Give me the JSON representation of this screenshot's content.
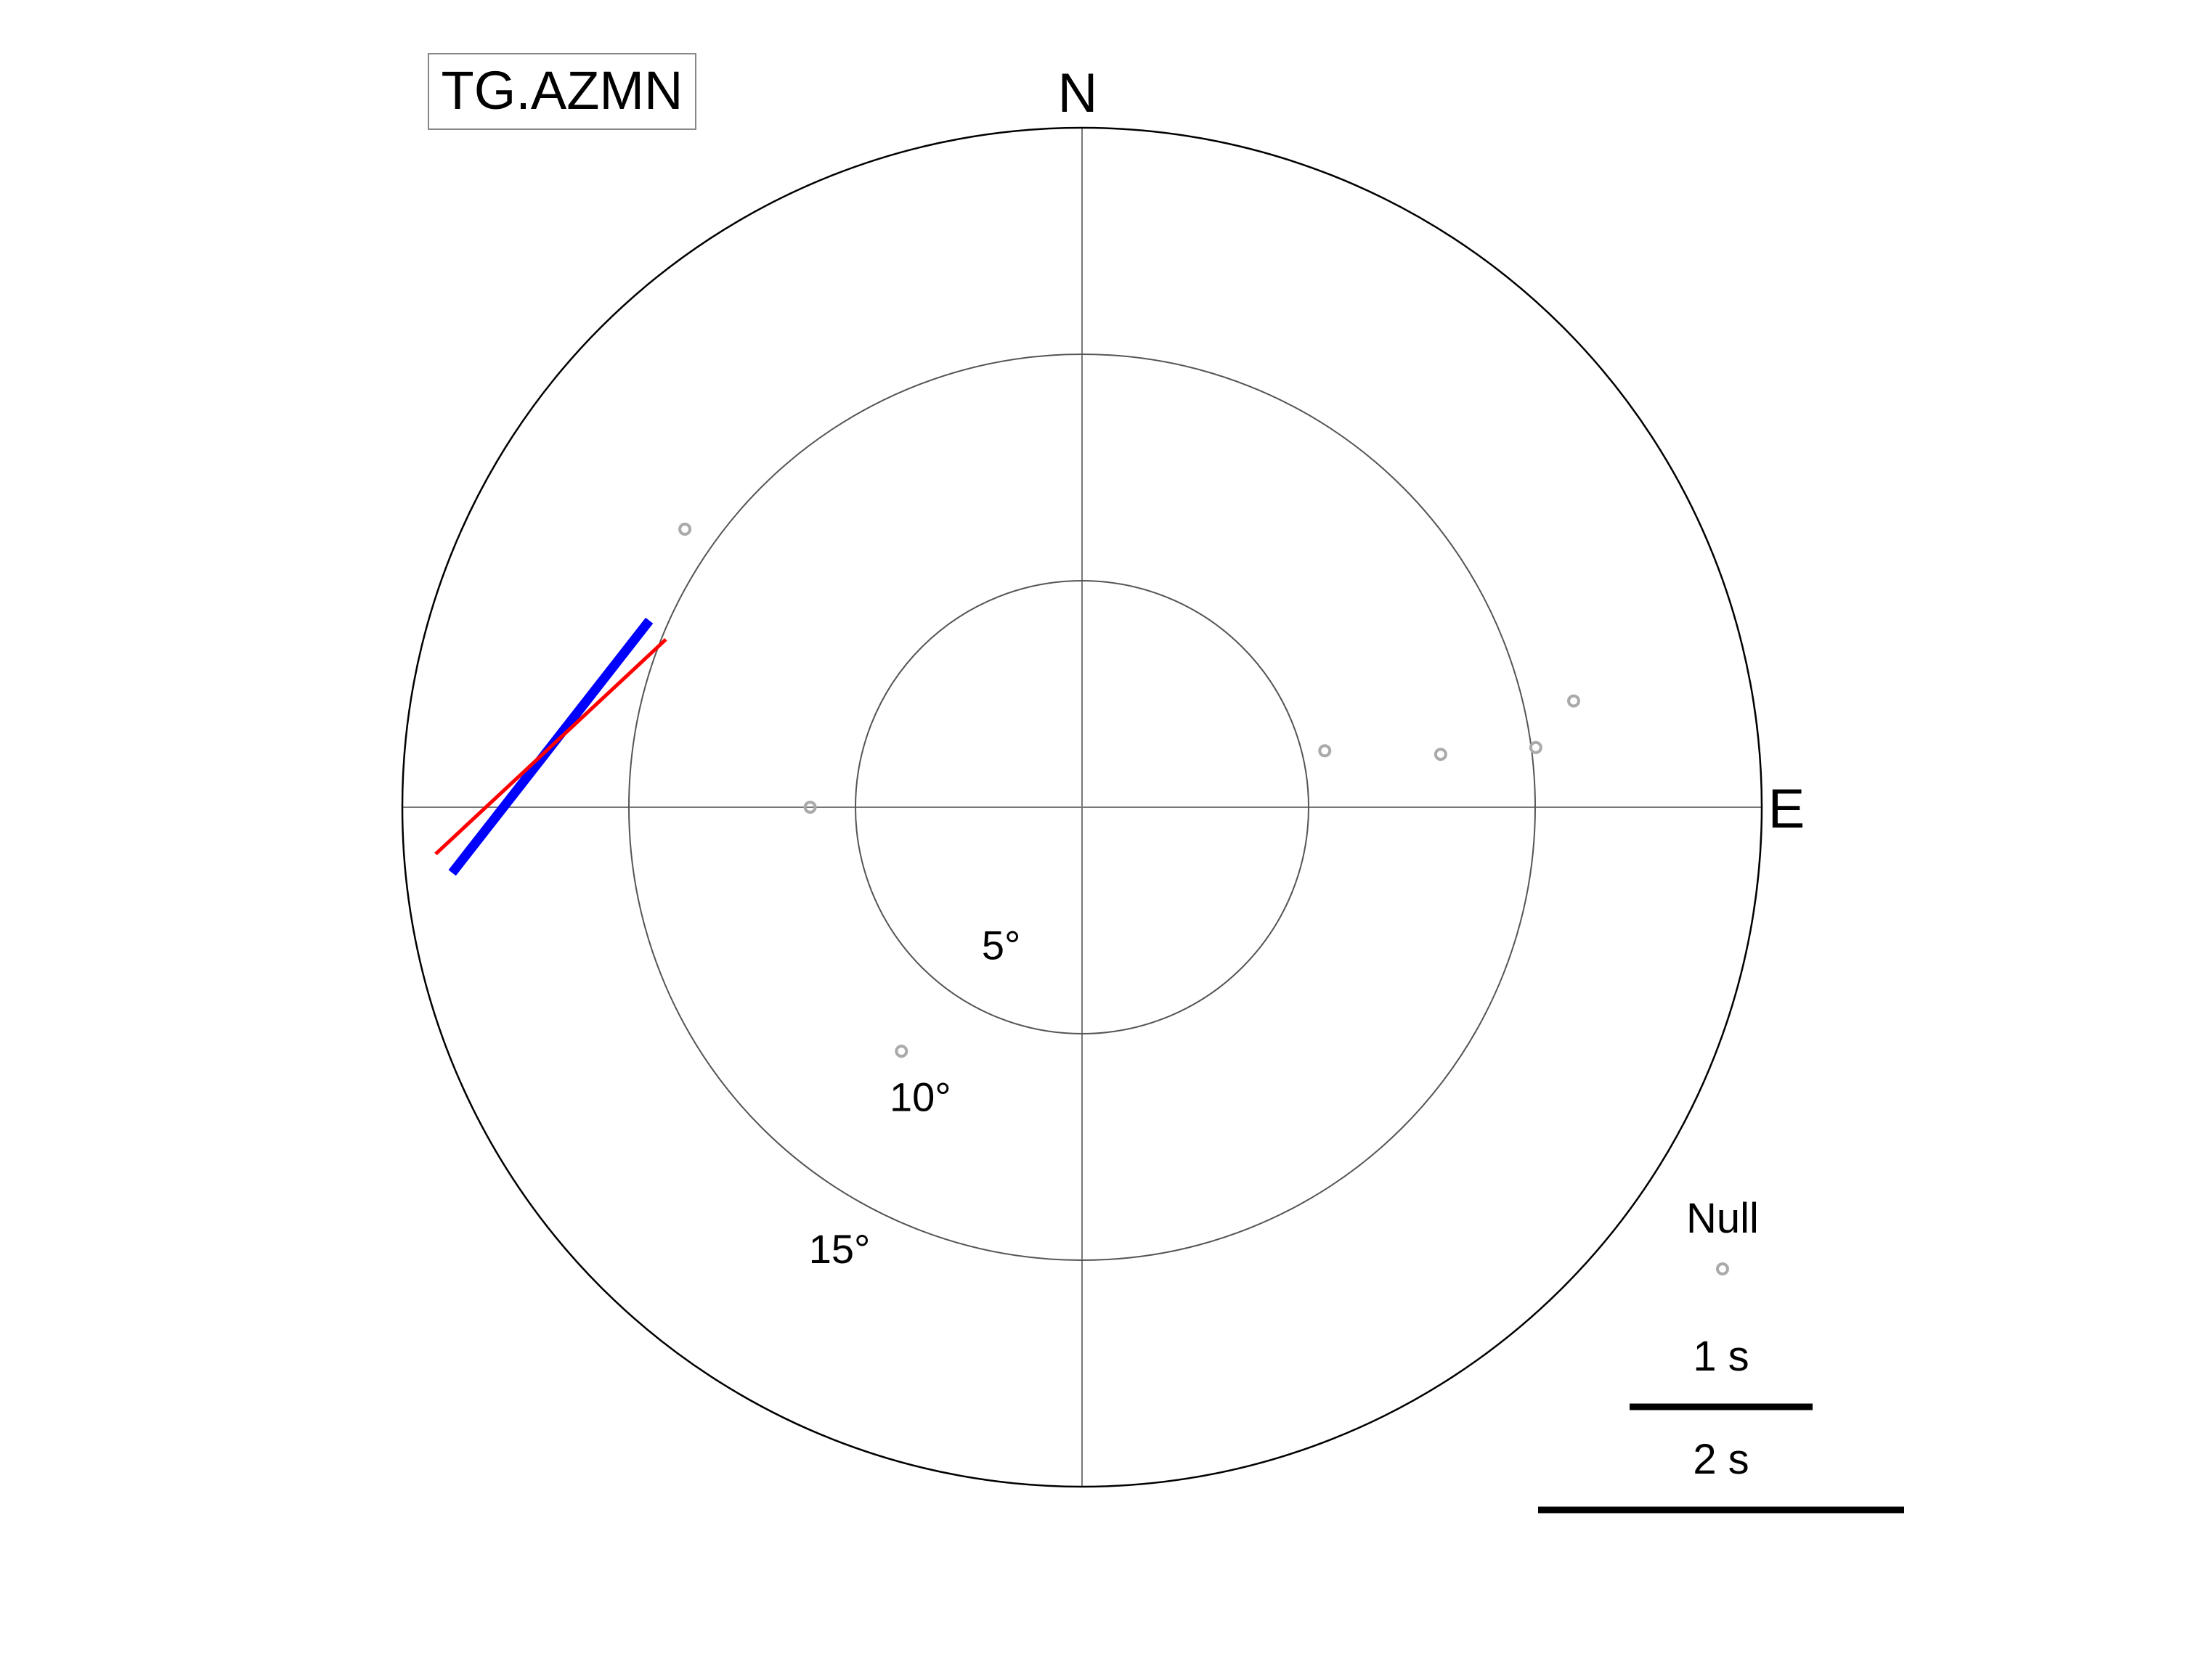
{
  "chart_data": {
    "type": "scatter",
    "title": "TG.AZMN",
    "compass": {
      "north": "N",
      "east": "E"
    },
    "incidence_rings": [
      {
        "value": 5,
        "label": "5°"
      },
      {
        "value": 10,
        "label": "10°"
      },
      {
        "value": 15,
        "label": "15°"
      }
    ],
    "radial_max_deg": 15,
    "grid": true,
    "legend": {
      "placement": "bottom-right",
      "null_label": "Null",
      "scale_bars": [
        {
          "label": "1 s",
          "seconds": 1
        },
        {
          "label": "2 s",
          "seconds": 2
        }
      ]
    },
    "null_measurements": [
      {
        "baz_deg": 305.0,
        "incidence_deg": 10.7
      },
      {
        "baz_deg": 270.0,
        "incidence_deg": 6.0
      },
      {
        "baz_deg": 216.5,
        "incidence_deg": 6.7
      },
      {
        "baz_deg": 76.9,
        "incidence_deg": 5.5
      },
      {
        "baz_deg": 81.6,
        "incidence_deg": 8.0
      },
      {
        "baz_deg": 82.5,
        "incidence_deg": 10.1
      },
      {
        "baz_deg": 77.8,
        "incidence_deg": 11.1
      }
    ],
    "splitting_measurements": [
      {
        "baz_deg": 276.5,
        "incidence_deg": 11.8,
        "methods": [
          {
            "name": "blue",
            "color": "#0000ff",
            "fast_azimuth_deg": 38,
            "delay_s": 1.75
          },
          {
            "name": "red",
            "color": "#ff0000",
            "fast_azimuth_deg": 47,
            "delay_s": 1.72
          }
        ]
      }
    ],
    "null_color": "#aaaaaa"
  }
}
